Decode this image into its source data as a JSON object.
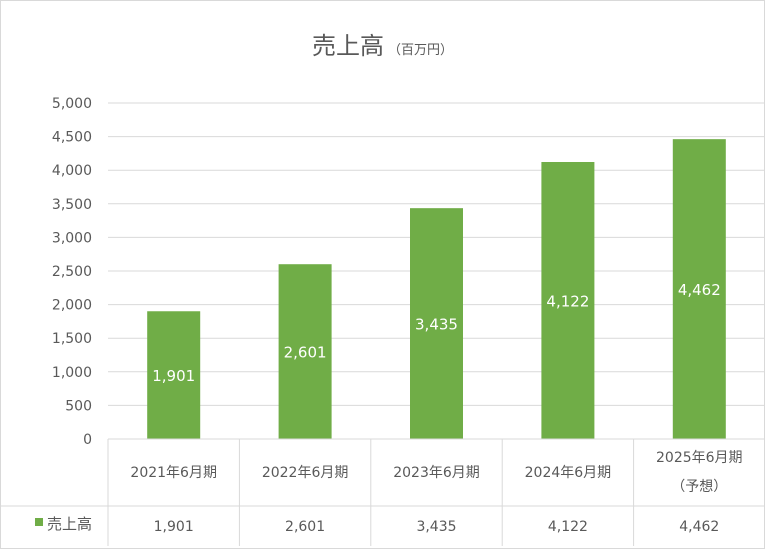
{
  "chart_data": {
    "type": "bar",
    "title": "売上高",
    "title_unit": "（百万円）",
    "categories": [
      "2021年6月期",
      "2022年6月期",
      "2023年6月期",
      "2024年6月期",
      "2025年6月期"
    ],
    "category_notes": [
      "",
      "",
      "",
      "",
      "（予想）"
    ],
    "series": [
      {
        "name": "売上高",
        "values": [
          1901,
          2601,
          3435,
          4122,
          4462
        ],
        "labels": [
          "1,901",
          "2,601",
          "3,435",
          "4,122",
          "4,462"
        ]
      }
    ],
    "ylim": [
      0,
      5000
    ],
    "yticks": [
      0,
      500,
      1000,
      1500,
      2000,
      2500,
      3000,
      3500,
      4000,
      4500,
      5000
    ],
    "ytick_labels": [
      "0",
      "500",
      "1,000",
      "1,500",
      "2,000",
      "2,500",
      "3,000",
      "3,500",
      "4,000",
      "4,500",
      "5,000"
    ],
    "grid": true,
    "bar_color": "#70ad47",
    "legend": "data-table"
  }
}
